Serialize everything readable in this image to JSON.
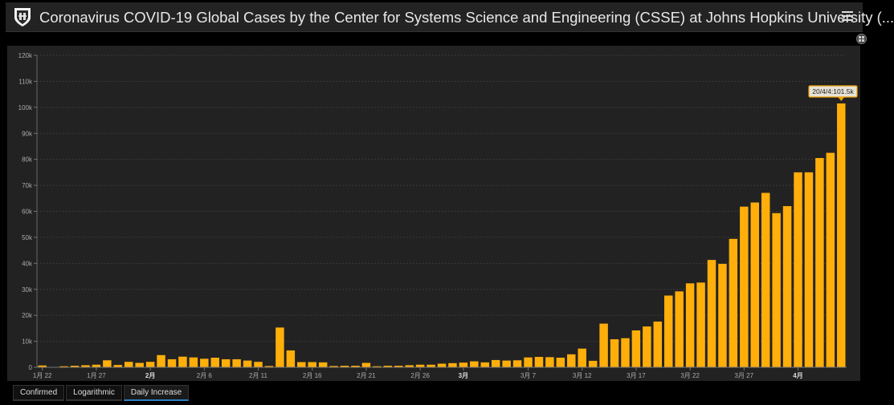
{
  "header": {
    "title": "Coronavirus COVID-19 Global Cases by the Center for Systems Science and Engineering (CSSE) at Johns Hopkins University (..."
  },
  "tabs": [
    {
      "label": "Confirmed",
      "active": false
    },
    {
      "label": "Logarithmic",
      "active": false
    },
    {
      "label": "Daily Increase",
      "active": true
    }
  ],
  "colors": {
    "bar": "#ffae0a",
    "background": "#222222",
    "accent_tab": "#2a7fc0"
  },
  "chart_data": {
    "type": "bar",
    "title": "",
    "xlabel": "",
    "ylabel": "",
    "ylim": [
      0,
      120000
    ],
    "grid": true,
    "y_ticks": [
      "0",
      "10k",
      "20k",
      "30k",
      "40k",
      "50k",
      "60k",
      "70k",
      "80k",
      "90k",
      "100k",
      "110k",
      "120k"
    ],
    "x_ticks": [
      {
        "index": 0,
        "label": "1月 22",
        "bold": false
      },
      {
        "index": 5,
        "label": "1月 27",
        "bold": false
      },
      {
        "index": 10,
        "label": "2月",
        "bold": true
      },
      {
        "index": 15,
        "label": "2月 6",
        "bold": false
      },
      {
        "index": 20,
        "label": "2月 11",
        "bold": false
      },
      {
        "index": 25,
        "label": "2月 16",
        "bold": false
      },
      {
        "index": 30,
        "label": "2月 21",
        "bold": false
      },
      {
        "index": 35,
        "label": "2月 26",
        "bold": false
      },
      {
        "index": 39,
        "label": "3月",
        "bold": true
      },
      {
        "index": 45,
        "label": "3月 7",
        "bold": false
      },
      {
        "index": 50,
        "label": "3月 12",
        "bold": false
      },
      {
        "index": 55,
        "label": "3月 17",
        "bold": false
      },
      {
        "index": 60,
        "label": "3月 22",
        "bold": false
      },
      {
        "index": 65,
        "label": "3月 27",
        "bold": false
      },
      {
        "index": 70,
        "label": "4月",
        "bold": true
      }
    ],
    "values": [
      700,
      100,
      400,
      600,
      800,
      1000,
      2700,
      900,
      2100,
      1700,
      2100,
      4700,
      3100,
      4100,
      3800,
      3300,
      3700,
      3100,
      3100,
      2600,
      2100,
      500,
      15300,
      6500,
      2000,
      2000,
      1900,
      500,
      600,
      600,
      1700,
      400,
      600,
      600,
      800,
      1000,
      1000,
      1400,
      1600,
      1800,
      2300,
      1900,
      2800,
      2600,
      2700,
      3800,
      4000,
      3900,
      3700,
      5000,
      7200,
      2500,
      16800,
      10800,
      11200,
      14200,
      15700,
      17600,
      27600,
      29200,
      32300,
      32600,
      41300,
      39800,
      49400,
      61800,
      63400,
      67100,
      59300,
      62000,
      75000,
      75000,
      80500,
      82500,
      101500
    ],
    "tooltip": "20/4/4:101.5k"
  }
}
